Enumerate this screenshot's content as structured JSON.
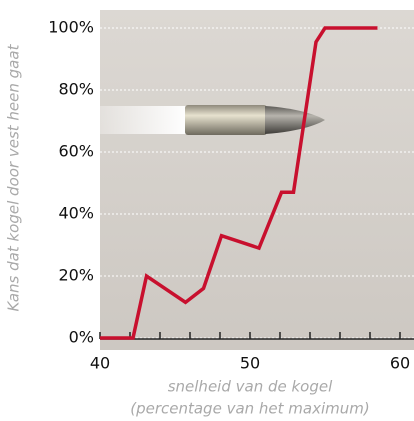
{
  "chart_data": {
    "type": "line",
    "xlabel": [
      "snelheid van de kogel",
      "(percentage van het maximum)"
    ],
    "ylabel": "Kans dat kogel door vest heen gaat",
    "series": [
      {
        "color": "#c8102e",
        "x": [
          40,
          42.2,
          43.1,
          45.7,
          46.9,
          48.1,
          50.6,
          52.1,
          52.9,
          54.4,
          55,
          58.5
        ],
        "values": [
          0,
          0,
          20,
          11.5,
          16,
          33,
          29,
          47,
          47,
          95.5,
          100,
          100
        ]
      }
    ],
    "xlim": [
      40,
      60
    ],
    "xticks": [
      40,
      50,
      60
    ],
    "xminorticks": [
      42,
      44,
      46,
      48,
      52,
      54,
      56,
      58
    ],
    "ylim": [
      0,
      100
    ],
    "yticks": [
      {
        "value": 0,
        "label": "0%"
      },
      {
        "value": 20,
        "label": "20%"
      },
      {
        "value": 40,
        "label": "40%"
      },
      {
        "value": 60,
        "label": "60%"
      },
      {
        "value": 80,
        "label": "80%"
      },
      {
        "value": 100,
        "label": "100%"
      }
    ],
    "grid": true
  }
}
